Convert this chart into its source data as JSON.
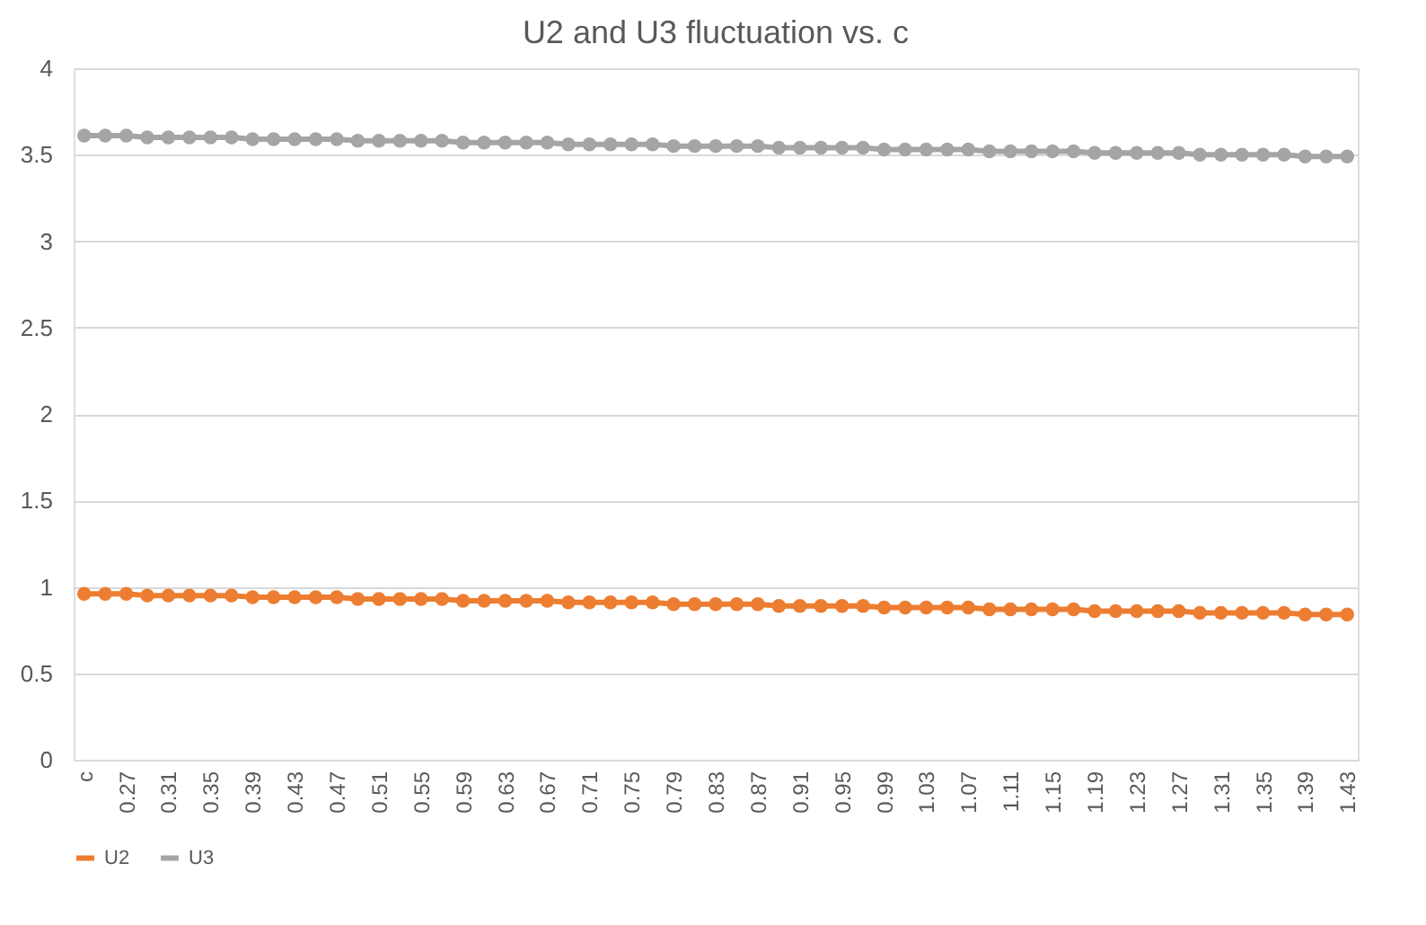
{
  "chart_data": {
    "type": "line",
    "title": "U2 and U3 fluctuation vs.  c",
    "categories": [
      "c",
      null,
      "0.27",
      null,
      "0.31",
      null,
      "0.35",
      null,
      "0.39",
      null,
      "0.43",
      null,
      "0.47",
      null,
      "0.51",
      null,
      "0.55",
      null,
      "0.59",
      null,
      "0.63",
      null,
      "0.67",
      null,
      "0.71",
      null,
      "0.75",
      null,
      "0.79",
      null,
      "0.83",
      null,
      "0.87",
      null,
      "0.91",
      null,
      "0.95",
      null,
      "0.99",
      null,
      "1.03",
      null,
      "1.07",
      null,
      "1.11",
      null,
      "1.15",
      null,
      "1.19",
      null,
      "1.23",
      null,
      "1.27",
      null,
      "1.31",
      null,
      "1.35",
      null,
      "1.39",
      null,
      "1.43"
    ],
    "series": [
      {
        "name": "U2",
        "color": "#ed7d31",
        "values": [
          0.96,
          0.96,
          0.96,
          0.95,
          0.95,
          0.95,
          0.95,
          0.95,
          0.94,
          0.94,
          0.94,
          0.94,
          0.94,
          0.93,
          0.93,
          0.93,
          0.93,
          0.93,
          0.92,
          0.92,
          0.92,
          0.92,
          0.92,
          0.91,
          0.91,
          0.91,
          0.91,
          0.91,
          0.9,
          0.9,
          0.9,
          0.9,
          0.9,
          0.89,
          0.89,
          0.89,
          0.89,
          0.89,
          0.88,
          0.88,
          0.88,
          0.88,
          0.88,
          0.87,
          0.87,
          0.87,
          0.87,
          0.87,
          0.86,
          0.86,
          0.86,
          0.86,
          0.86,
          0.85,
          0.85,
          0.85,
          0.85,
          0.85,
          0.84,
          0.84,
          0.84
        ]
      },
      {
        "name": "U3",
        "color": "#a5a5a5",
        "values": [
          3.61,
          3.61,
          3.61,
          3.6,
          3.6,
          3.6,
          3.6,
          3.6,
          3.59,
          3.59,
          3.59,
          3.59,
          3.59,
          3.58,
          3.58,
          3.58,
          3.58,
          3.58,
          3.57,
          3.57,
          3.57,
          3.57,
          3.57,
          3.56,
          3.56,
          3.56,
          3.56,
          3.56,
          3.55,
          3.55,
          3.55,
          3.55,
          3.55,
          3.54,
          3.54,
          3.54,
          3.54,
          3.54,
          3.53,
          3.53,
          3.53,
          3.53,
          3.53,
          3.52,
          3.52,
          3.52,
          3.52,
          3.52,
          3.51,
          3.51,
          3.51,
          3.51,
          3.51,
          3.5,
          3.5,
          3.5,
          3.5,
          3.5,
          3.49,
          3.49,
          3.49
        ]
      }
    ],
    "ylim": [
      0,
      4
    ],
    "yticks": [
      0,
      0.5,
      1,
      1.5,
      2,
      2.5,
      3,
      3.5,
      4
    ],
    "grid": "y",
    "legend": "bottom",
    "marker": "circle",
    "line_style": "solid"
  }
}
